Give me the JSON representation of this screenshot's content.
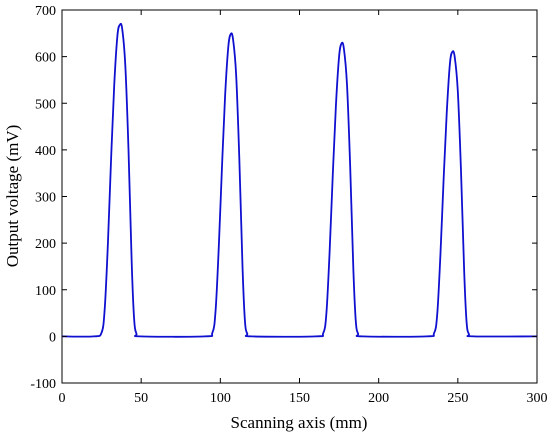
{
  "chart_data": {
    "type": "line",
    "title": "",
    "xlabel": "Scanning axis (mm)",
    "ylabel": "Output voltage (mV)",
    "xlim": [
      0,
      300
    ],
    "ylim": [
      -100,
      700
    ],
    "xticks": [
      0,
      50,
      100,
      150,
      200,
      250,
      300
    ],
    "yticks": [
      -100,
      0,
      100,
      200,
      300,
      400,
      500,
      600,
      700
    ],
    "grid": false,
    "legend": "none",
    "series": [
      {
        "color": "#1010d0",
        "x": [
          0,
          20,
          25,
          27,
          29,
          31,
          33,
          35,
          36.5,
          38,
          40,
          42,
          44,
          45.5,
          47,
          50,
          90,
          95,
          97,
          99,
          101,
          103,
          105,
          106.5,
          108,
          110,
          112,
          114,
          115.5,
          117,
          120,
          160,
          165,
          167,
          169,
          171,
          173,
          175,
          176.5,
          178,
          180,
          182,
          184,
          185.5,
          187,
          190,
          230,
          235,
          237,
          239,
          241,
          243,
          245,
          246.5,
          248,
          250,
          252,
          254,
          255.5,
          257,
          260,
          300
        ],
        "y": [
          0,
          0,
          8,
          60,
          200,
          380,
          540,
          645,
          668,
          660,
          580,
          400,
          160,
          40,
          6,
          0,
          0,
          8,
          55,
          190,
          360,
          515,
          620,
          648,
          638,
          560,
          380,
          150,
          35,
          6,
          0,
          0,
          7,
          50,
          180,
          345,
          495,
          600,
          628,
          618,
          540,
          365,
          145,
          35,
          6,
          0,
          0,
          7,
          48,
          175,
          335,
          480,
          585,
          610,
          600,
          525,
          355,
          140,
          32,
          5,
          0,
          0
        ]
      }
    ]
  }
}
